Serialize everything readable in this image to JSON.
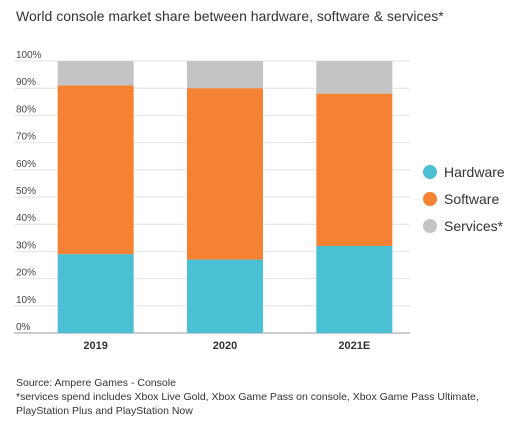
{
  "chart_data": {
    "type": "bar",
    "stacked": true,
    "title": "World console market share between hardware, software & services*",
    "categories": [
      "2019",
      "2020",
      "2021E"
    ],
    "series": [
      {
        "name": "Hardware",
        "color": "#4bbfd3",
        "values": [
          29,
          27,
          32
        ]
      },
      {
        "name": "Software",
        "color": "#f58233",
        "values": [
          62,
          63,
          56
        ]
      },
      {
        "name": "Services*",
        "color": "#c4c4c4",
        "values": [
          9,
          10,
          12
        ]
      }
    ],
    "y_ticks": [
      "0%",
      "10%",
      "20%",
      "30%",
      "40%",
      "50%",
      "60%",
      "70%",
      "80%",
      "90%",
      "100%"
    ],
    "ylim": [
      0,
      100
    ],
    "grid": true,
    "legend_position": "right"
  },
  "footer": {
    "source": "Source: Ampere Games - Console",
    "note": "*services spend includes Xbox Live Gold, Xbox Game Pass on console, Xbox Game Pass Ultimate, PlayStation Plus and PlayStation Now"
  }
}
